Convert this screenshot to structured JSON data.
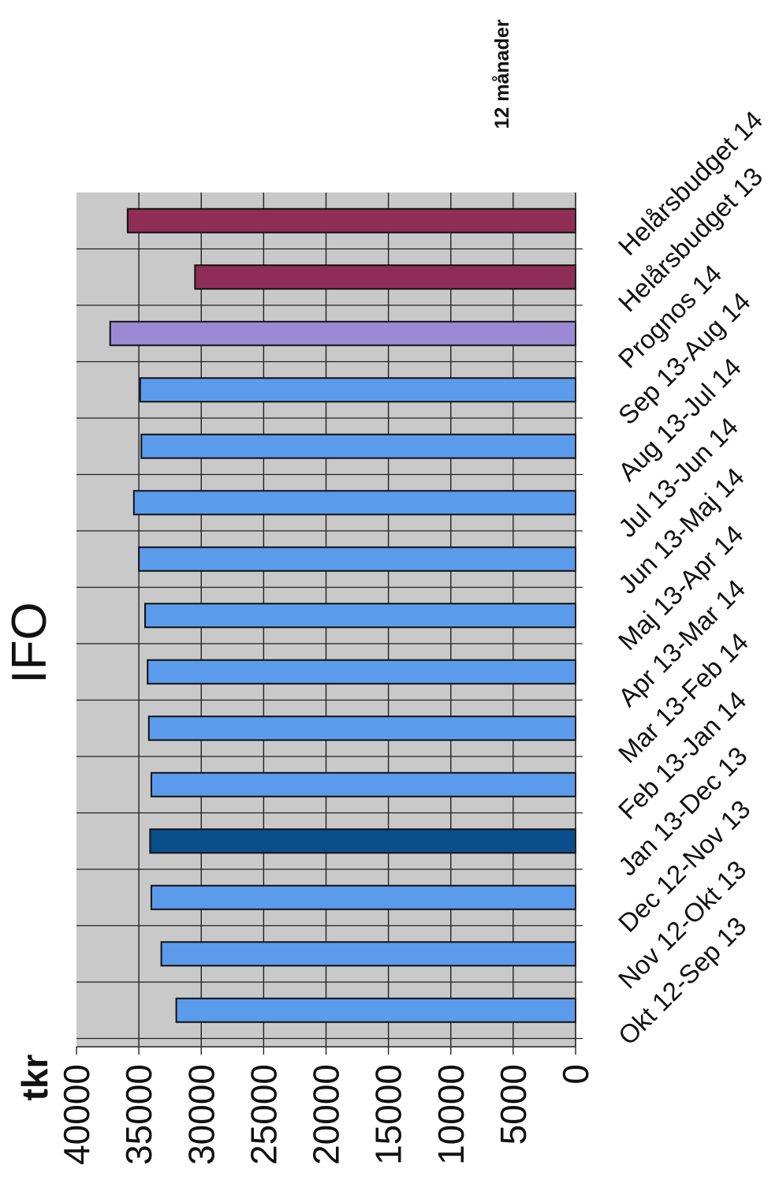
{
  "chart_data": {
    "type": "bar",
    "orientation": "rotated-90",
    "title": "IFO",
    "ylabel": "tkr",
    "note": "12 månader",
    "ylim": [
      0,
      40000
    ],
    "yticks": [
      "0",
      "5000",
      "10000",
      "15000",
      "20000",
      "25000",
      "30000",
      "35000",
      "40000"
    ],
    "grid": true,
    "categories": [
      "Okt 12-Sep 13",
      "Nov 12-Okt 13",
      "Dec 12-Nov 13",
      "Jan 13-Dec 13",
      "Feb 13-Jan 14",
      "Mar 13-Feb 14",
      "Apr 13-Mar 14",
      "Maj 13-Apr 14",
      "Jun 13-Maj 14",
      "Jul 13-Jun 14",
      "Aug 13-Jul 14",
      "Sep 13-Aug 14",
      "Prognos 14",
      "Helårsbudget 13",
      "Helårsbudget 14"
    ],
    "values": [
      32000,
      33200,
      34000,
      34100,
      34000,
      34200,
      34300,
      34500,
      35000,
      35400,
      34800,
      34900,
      37300,
      30500,
      35900
    ],
    "colors": [
      "#5B9BEB",
      "#5B9BEB",
      "#5B9BEB",
      "#0A4F8C",
      "#5B9BEB",
      "#5B9BEB",
      "#5B9BEB",
      "#5B9BEB",
      "#5B9BEB",
      "#5B9BEB",
      "#5B9BEB",
      "#5B9BEB",
      "#9B8AD3",
      "#8E2E57",
      "#8E2E57"
    ]
  }
}
